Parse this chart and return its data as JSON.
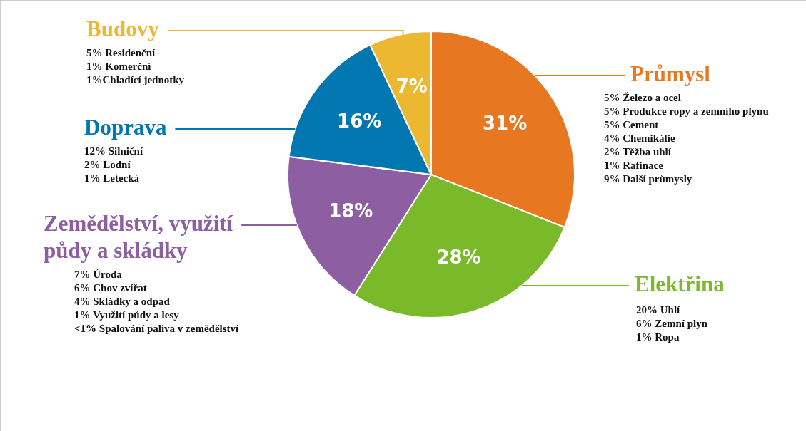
{
  "chart_data": {
    "type": "pie",
    "categories": [
      "Průmysl",
      "Elektřina",
      "Zemědělství, využití půdy a skládky",
      "Doprava",
      "Budovy"
    ],
    "values": [
      31,
      28,
      18,
      16,
      7
    ],
    "colors": [
      "#e87722",
      "#7ab929",
      "#8e5ea2",
      "#0077b0",
      "#ecb731"
    ],
    "value_labels": [
      "31%",
      "28%",
      "18%",
      "16%",
      "7%"
    ],
    "legend": false,
    "annotations": [
      "5% Železo a ocel\n5% Produkce ropy a zemního plynu\n5% Cement\n4% Chemikálie\n2% Těžba uhlí\n1% Rafinace\n9% Další průmysly",
      "20% Uhlí\n6% Zemní plyn\n1% Ropa",
      "7% Úroda\n6% Chov zvířat\n4% Skládky a odpad\n1% Využití půdy a lesy\n<1% Spalování paliva v zemědělství",
      "12% Silniční\n2% Lodní\n1% Letecká",
      "5% Residenční\n1% Komerční\n1%Chladící jednotky"
    ]
  }
}
